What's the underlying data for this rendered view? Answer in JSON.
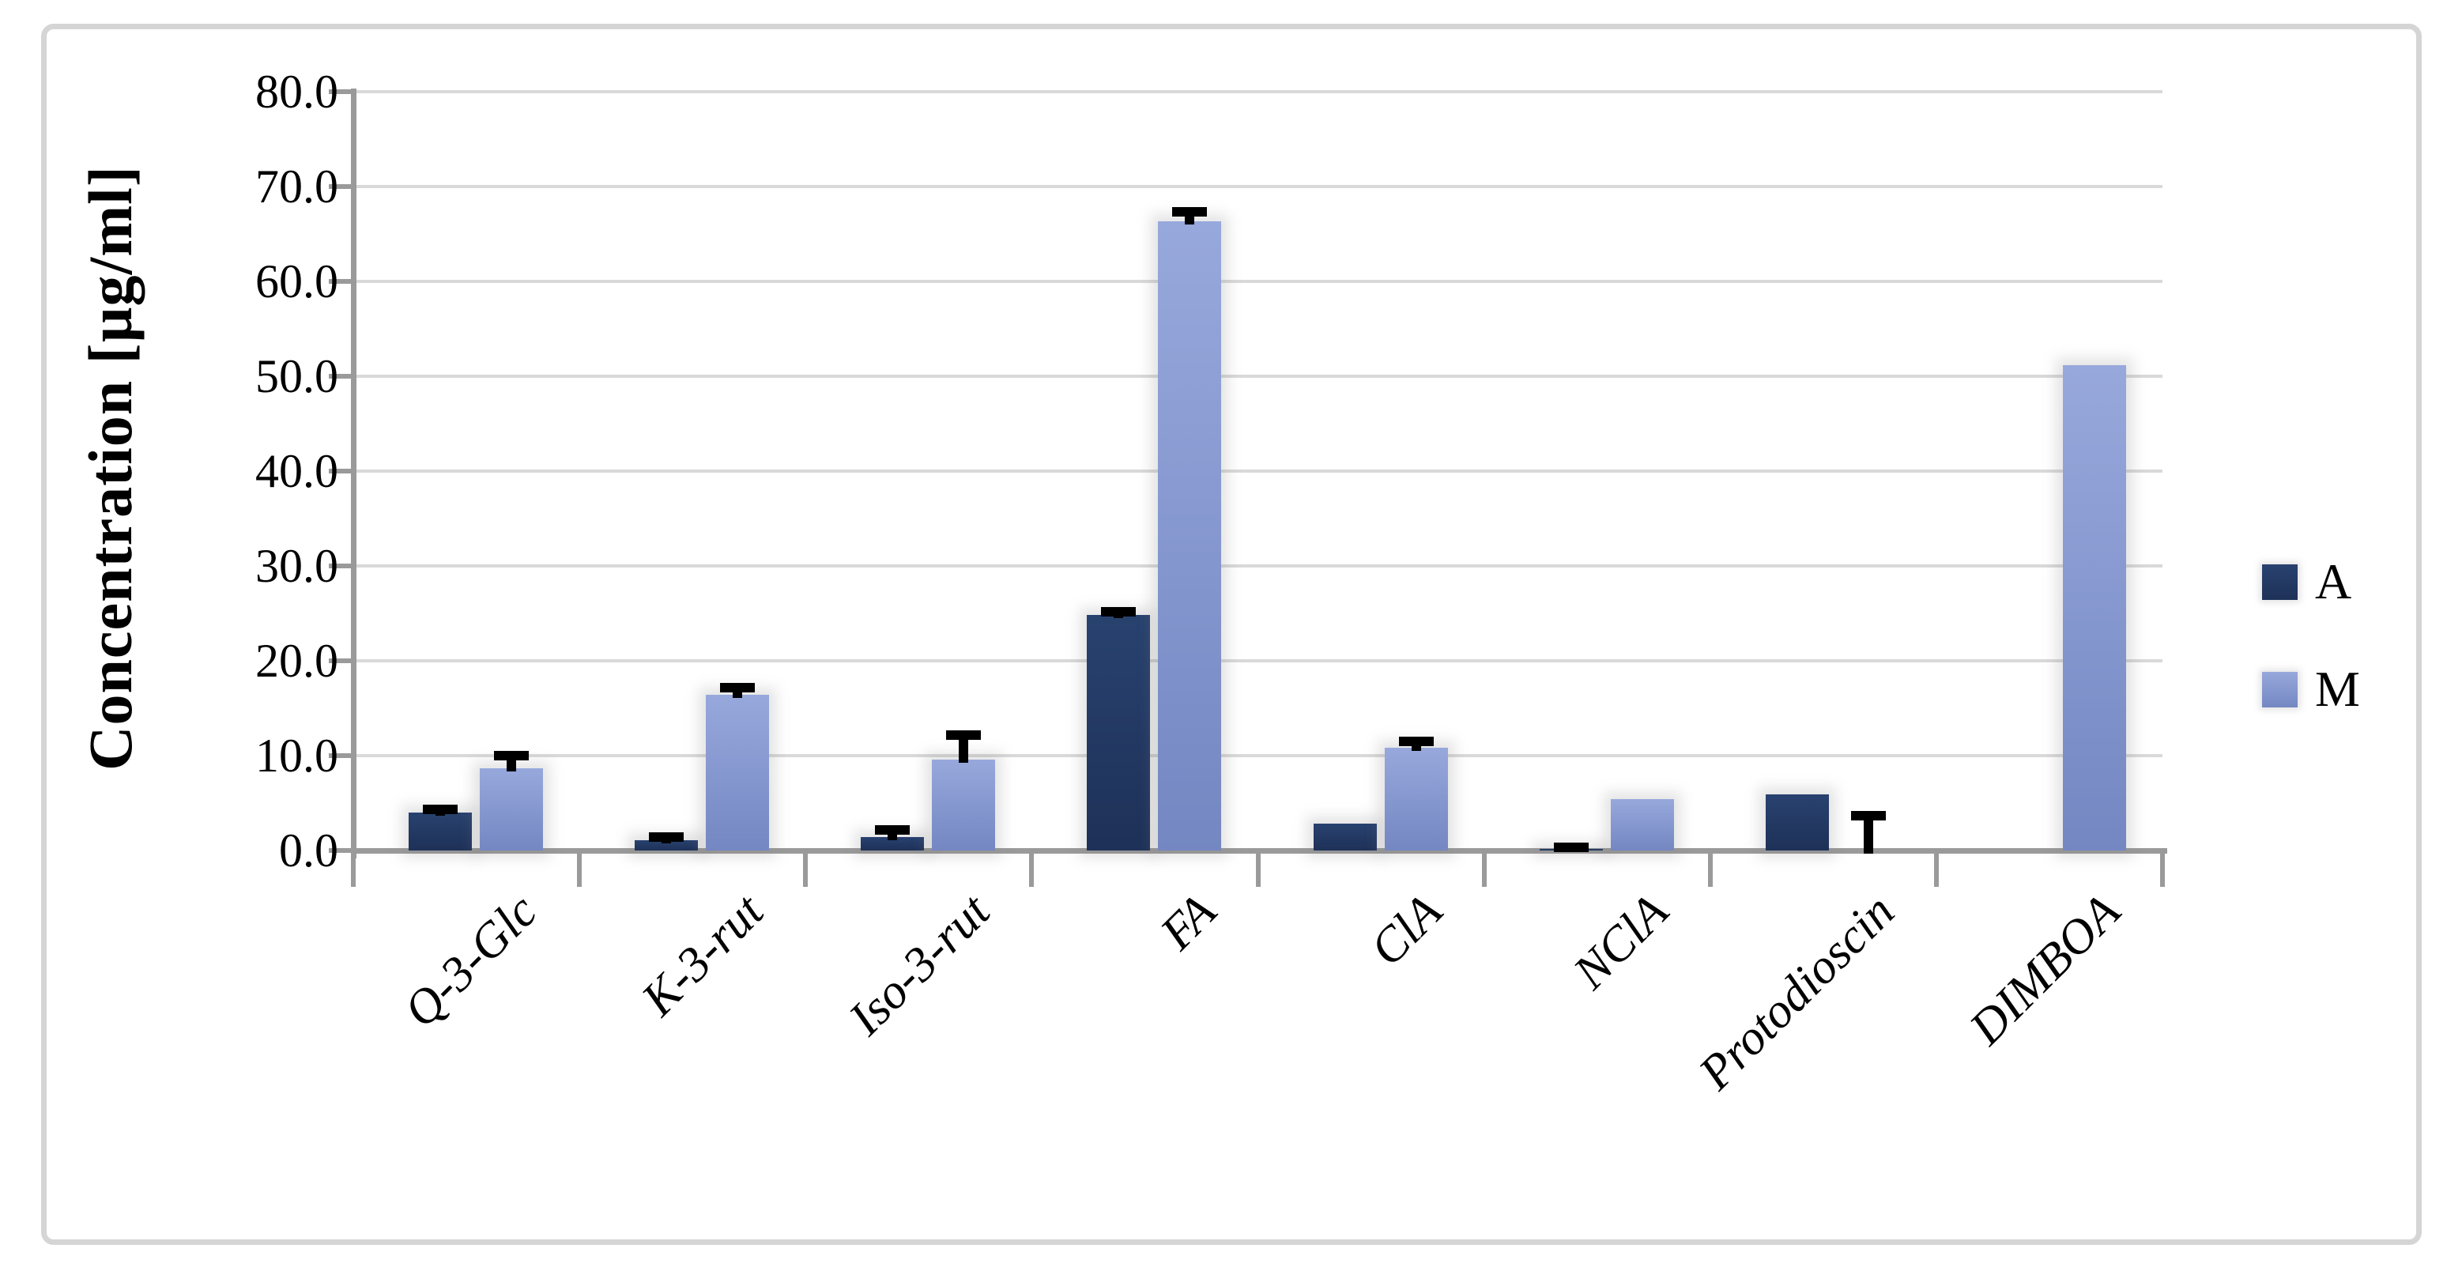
{
  "chart_data": {
    "type": "bar",
    "title": "",
    "ylabel": "Concentration [µg/ml]",
    "categories": [
      "Q-3-Glc",
      "K-3-rut",
      "Iso-3-rut",
      "FA",
      "ClA",
      "NClA",
      "Protodioscin",
      "DIMBOA"
    ],
    "series": [
      {
        "name": "A",
        "color_top": "#28426f",
        "color_bottom": "#1e3158",
        "legend_color": "#1f3864",
        "values": [
          4.0,
          1.1,
          1.4,
          24.8,
          2.8,
          0.2,
          5.9,
          0.0
        ],
        "errors": [
          0.3,
          0.3,
          0.8,
          0.4,
          0.0,
          0.1,
          0.0,
          0.0
        ]
      },
      {
        "name": "M",
        "color_top": "#97a8dc",
        "color_bottom": "#7487c2",
        "legend_color": "#8498cd",
        "values": [
          8.7,
          16.4,
          9.6,
          66.3,
          10.8,
          5.4,
          0.0,
          51.2
        ],
        "errors": [
          1.3,
          0.8,
          2.6,
          1.0,
          0.7,
          0.0,
          3.7,
          0.0
        ]
      }
    ],
    "ylim": [
      0,
      80
    ],
    "ytick_step": 10,
    "ytick_labels": [
      "0.0",
      "10.0",
      "20.0",
      "30.0",
      "40.0",
      "50.0",
      "60.0",
      "70.0",
      "80.0"
    ],
    "grid": true,
    "legend_position": "right",
    "error_bar_style": "upper-only-black",
    "colors": {
      "axis": "#9a9a9a",
      "gridline": "#d9d9d9",
      "error": "#000000",
      "frame": "#d5d5d5",
      "background": "#ffffff"
    }
  }
}
